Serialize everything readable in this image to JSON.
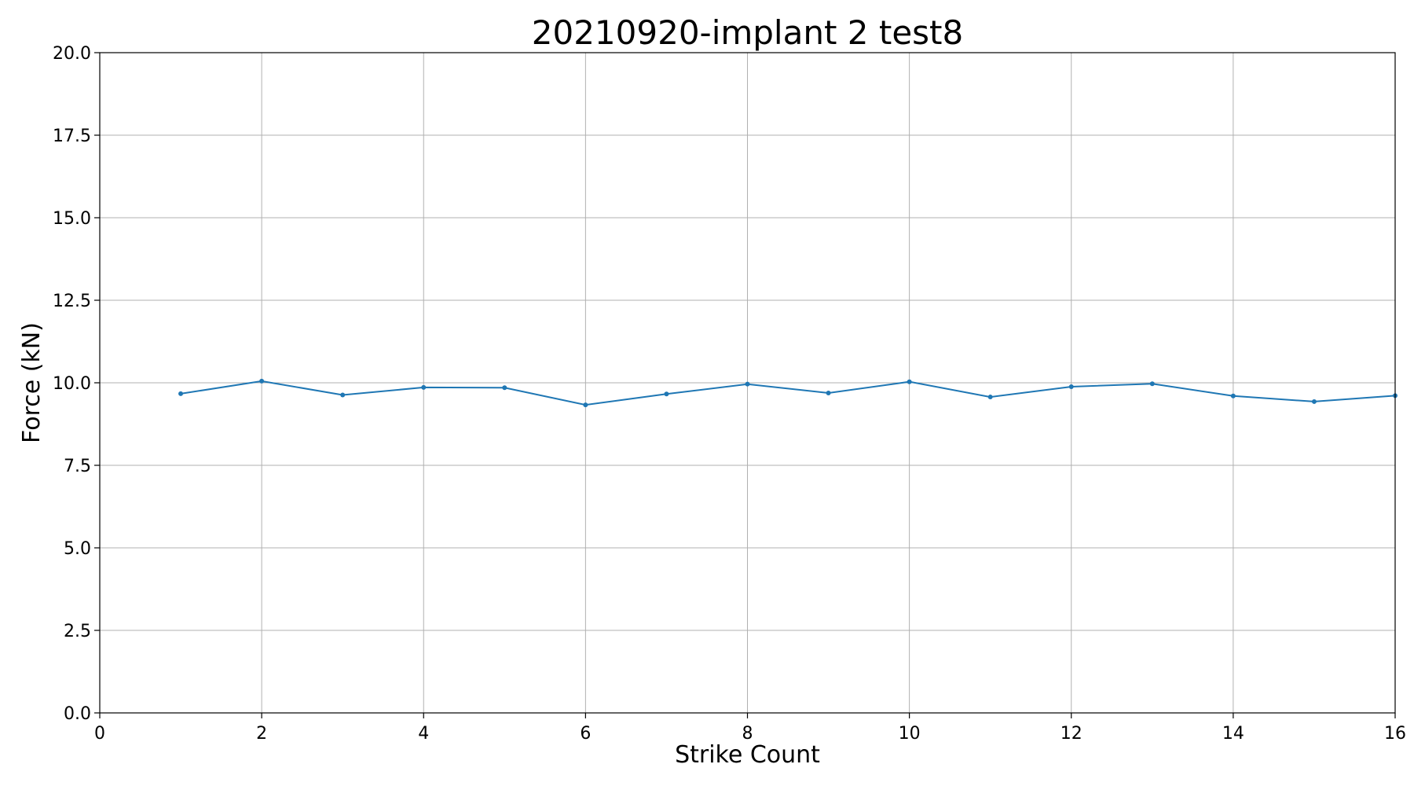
{
  "chart_data": {
    "type": "line",
    "title": "20210920-implant 2 test8",
    "xlabel": "Strike Count",
    "ylabel": "Force (kN)",
    "xlim": [
      0,
      16
    ],
    "ylim": [
      0,
      20
    ],
    "xticks": [
      "0",
      "2",
      "4",
      "6",
      "8",
      "10",
      "12",
      "14",
      "16"
    ],
    "yticks": [
      "0.0",
      "2.5",
      "5.0",
      "7.5",
      "10.0",
      "12.5",
      "15.0",
      "17.5",
      "20.0"
    ],
    "grid": true,
    "series": [
      {
        "color": "#1f77b4",
        "x": [
          1,
          2,
          3,
          4,
          5,
          6,
          7,
          8,
          9,
          10,
          11,
          12,
          13,
          14,
          15,
          16
        ],
        "y": [
          9.67,
          10.05,
          9.63,
          9.86,
          9.85,
          9.33,
          9.66,
          9.96,
          9.69,
          10.03,
          9.57,
          9.88,
          9.97,
          9.6,
          9.43,
          9.61
        ]
      }
    ]
  }
}
